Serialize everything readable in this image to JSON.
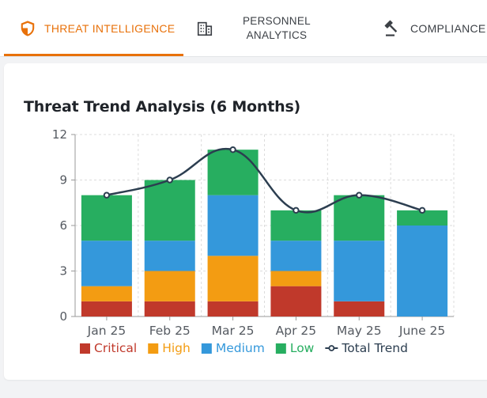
{
  "tabs": [
    {
      "label": "THREAT INTELLIGENCE",
      "icon": "shield-icon",
      "active": true
    },
    {
      "label_line1": "PERSONNEL",
      "label_line2": "ANALYTICS",
      "icon": "building-icon",
      "active": false
    },
    {
      "label": "COMPLIANCE I",
      "icon": "gavel-icon",
      "active": false
    }
  ],
  "colors": {
    "accent": "#e8710a",
    "critical": "#c0392b",
    "high": "#f39c12",
    "medium": "#3498db",
    "low": "#27ae60",
    "trend": "#2c3e50"
  },
  "chart_data": {
    "type": "bar",
    "title": "Threat Trend Analysis (6 Months)",
    "stacked": true,
    "categories": [
      "Jan 25",
      "Feb 25",
      "Mar 25",
      "Apr 25",
      "May 25",
      "June 25"
    ],
    "series": [
      {
        "name": "Critical",
        "values": [
          1,
          1,
          1,
          2,
          1,
          0
        ]
      },
      {
        "name": "High",
        "values": [
          1,
          2,
          3,
          1,
          0,
          0
        ]
      },
      {
        "name": "Medium",
        "values": [
          3,
          2,
          4,
          2,
          4,
          6
        ]
      },
      {
        "name": "Low",
        "values": [
          3,
          4,
          3,
          2,
          3,
          1
        ]
      }
    ],
    "trend": {
      "name": "Total Trend",
      "type": "line",
      "values": [
        8,
        9,
        11,
        7,
        8,
        7
      ]
    },
    "yticks": [
      "0",
      "3",
      "6",
      "9",
      "12"
    ],
    "ylim": [
      0,
      12
    ],
    "grid": true,
    "legend_position": "bottom"
  }
}
